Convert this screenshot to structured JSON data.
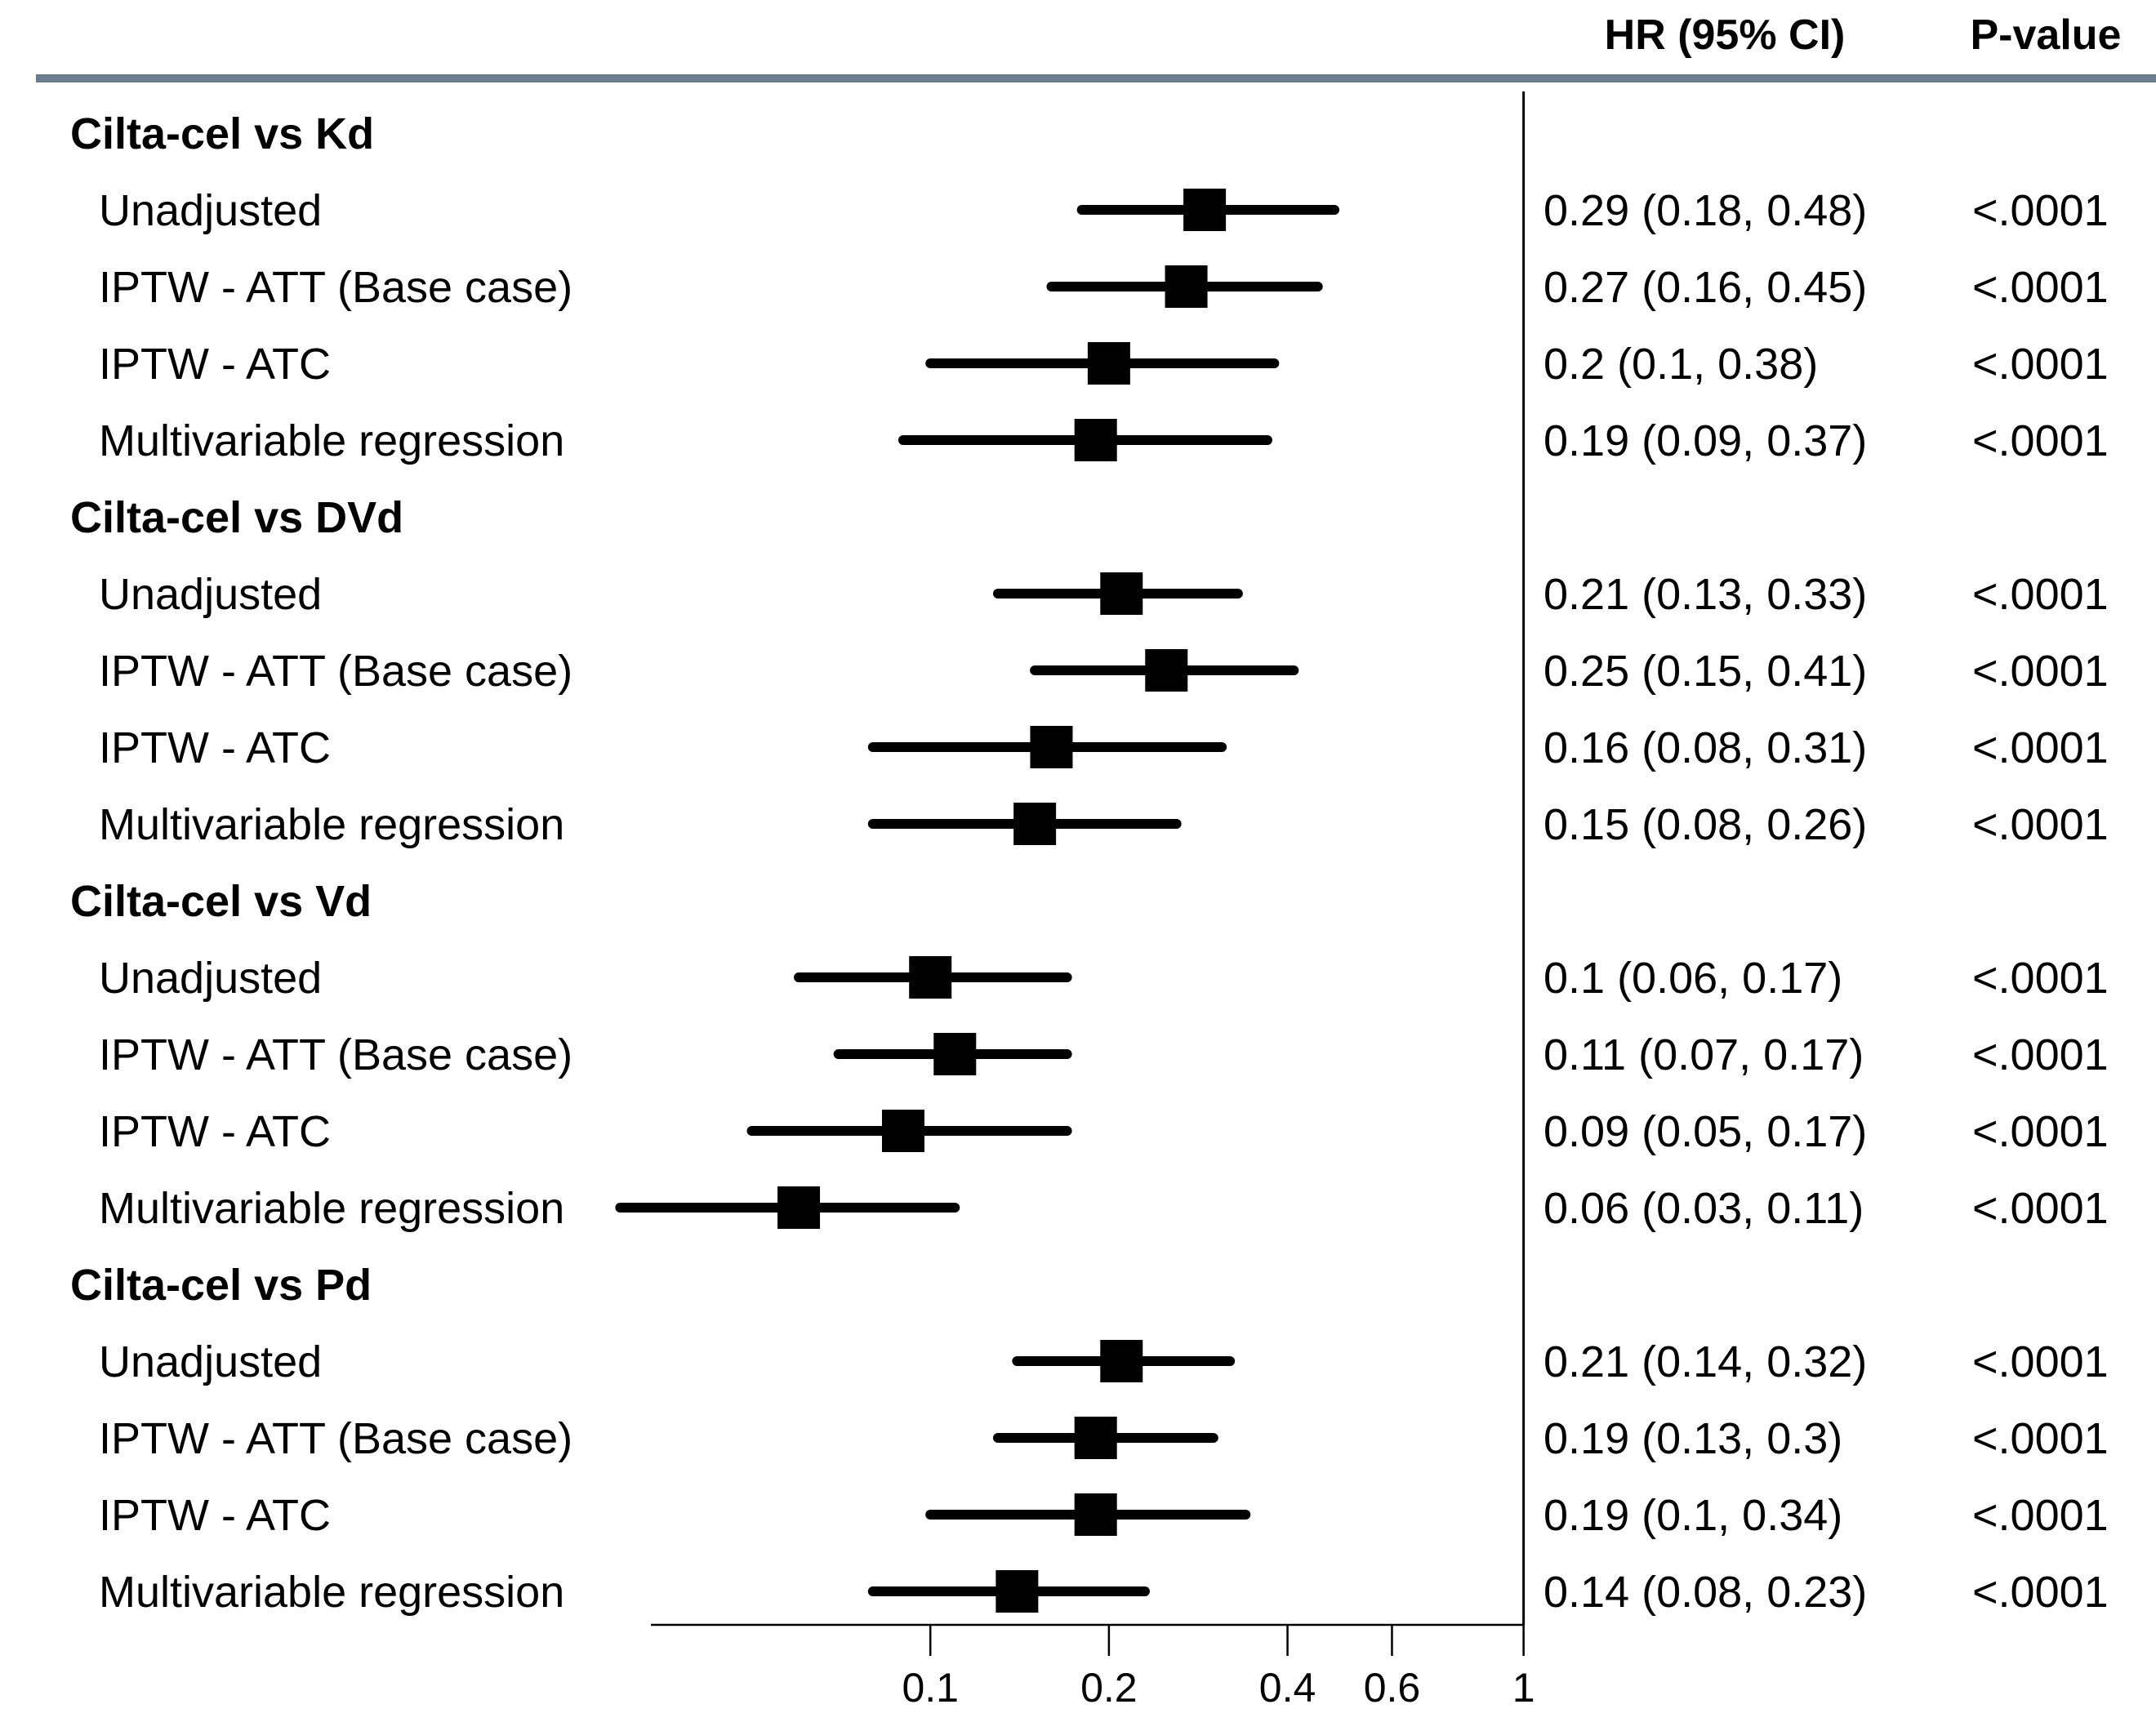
{
  "chart_data": {
    "type": "forest",
    "headers": {
      "hr": "HR (95% CI)",
      "p": "P-value"
    },
    "x_scale": "log",
    "xlim": [
      0.03,
      1
    ],
    "x_ticks": [
      0.1,
      0.2,
      0.4,
      0.6,
      1
    ],
    "x_tick_labels": [
      "0.1",
      "0.2",
      "0.4",
      "0.6",
      "1"
    ],
    "colors": {
      "marker": "#000000",
      "header_rule": "#6b7c8f"
    },
    "groups": [
      {
        "title": "Cilta-cel vs Kd",
        "rows": [
          {
            "label": "Unadjusted",
            "hr": 0.29,
            "lo": 0.18,
            "hi": 0.48,
            "ci_text": "0.29 (0.18, 0.48)",
            "p": "<.0001"
          },
          {
            "label": "IPTW - ATT (Base case)",
            "hr": 0.27,
            "lo": 0.16,
            "hi": 0.45,
            "ci_text": "0.27 (0.16, 0.45)",
            "p": "<.0001"
          },
          {
            "label": "IPTW - ATC",
            "hr": 0.2,
            "lo": 0.1,
            "hi": 0.38,
            "ci_text": "0.2 (0.1, 0.38)",
            "p": "<.0001"
          },
          {
            "label": "Multivariable regression",
            "hr": 0.19,
            "lo": 0.09,
            "hi": 0.37,
            "ci_text": "0.19 (0.09, 0.37)",
            "p": "<.0001"
          }
        ]
      },
      {
        "title": "Cilta-cel vs DVd",
        "rows": [
          {
            "label": "Unadjusted",
            "hr": 0.21,
            "lo": 0.13,
            "hi": 0.33,
            "ci_text": "0.21 (0.13, 0.33)",
            "p": "<.0001"
          },
          {
            "label": "IPTW - ATT (Base case)",
            "hr": 0.25,
            "lo": 0.15,
            "hi": 0.41,
            "ci_text": "0.25 (0.15, 0.41)",
            "p": "<.0001"
          },
          {
            "label": "IPTW - ATC",
            "hr": 0.16,
            "lo": 0.08,
            "hi": 0.31,
            "ci_text": "0.16 (0.08, 0.31)",
            "p": "<.0001"
          },
          {
            "label": "Multivariable regression",
            "hr": 0.15,
            "lo": 0.08,
            "hi": 0.26,
            "ci_text": "0.15 (0.08, 0.26)",
            "p": "<.0001"
          }
        ]
      },
      {
        "title": "Cilta-cel vs Vd",
        "rows": [
          {
            "label": "Unadjusted",
            "hr": 0.1,
            "lo": 0.06,
            "hi": 0.17,
            "ci_text": "0.1 (0.06, 0.17)",
            "p": "<.0001"
          },
          {
            "label": "IPTW - ATT (Base case)",
            "hr": 0.11,
            "lo": 0.07,
            "hi": 0.17,
            "ci_text": "0.11 (0.07, 0.17)",
            "p": "<.0001"
          },
          {
            "label": "IPTW - ATC",
            "hr": 0.09,
            "lo": 0.05,
            "hi": 0.17,
            "ci_text": "0.09 (0.05, 0.17)",
            "p": "<.0001"
          },
          {
            "label": "Multivariable regression",
            "hr": 0.06,
            "lo": 0.03,
            "hi": 0.11,
            "ci_text": "0.06 (0.03, 0.11)",
            "p": "<.0001"
          }
        ]
      },
      {
        "title": "Cilta-cel vs Pd",
        "rows": [
          {
            "label": "Unadjusted",
            "hr": 0.21,
            "lo": 0.14,
            "hi": 0.32,
            "ci_text": "0.21 (0.14, 0.32)",
            "p": "<.0001"
          },
          {
            "label": "IPTW - ATT (Base case)",
            "hr": 0.19,
            "lo": 0.13,
            "hi": 0.3,
            "ci_text": "0.19 (0.13, 0.3)",
            "p": "<.0001"
          },
          {
            "label": "IPTW - ATC",
            "hr": 0.19,
            "lo": 0.1,
            "hi": 0.34,
            "ci_text": "0.19 (0.1, 0.34)",
            "p": "<.0001"
          },
          {
            "label": "Multivariable regression",
            "hr": 0.14,
            "lo": 0.08,
            "hi": 0.23,
            "ci_text": "0.14 (0.08, 0.23)",
            "p": "<.0001"
          }
        ]
      }
    ]
  }
}
